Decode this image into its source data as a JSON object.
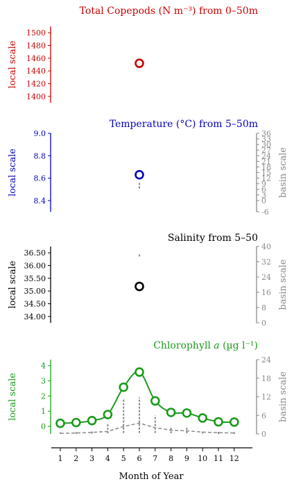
{
  "colors": {
    "copepods": "#cc0000",
    "temperature": "#0000bb",
    "salinity": "#000000",
    "chlorophyll": "#1a9a1a",
    "basin": "#888888"
  },
  "labels": {
    "local_scale": "local scale",
    "basin_scale": "basin scale"
  },
  "chart_data": [
    {
      "type": "scatter",
      "title": "Total Copepods (N m⁻³) from 0–50m",
      "ylabel_left": "local scale",
      "ylim_left": [
        1390,
        1510
      ],
      "yticks_left": [
        "1400",
        "1420",
        "1440",
        "1460",
        "1480",
        "1500"
      ],
      "series": [
        {
          "axis": "left",
          "x": [
            6
          ],
          "y": [
            1452
          ]
        }
      ]
    },
    {
      "type": "scatter",
      "title": "Temperature (°C) from 5–50m",
      "ylabel_left": "local scale",
      "ylabel_right": "basin scale",
      "ylim_left": [
        8.3,
        9.0
      ],
      "ylim_right": [
        -6,
        36
      ],
      "yticks_left": [
        "8.4",
        "8.6",
        "8.8",
        "9.0"
      ],
      "yticks_right": [
        "-6",
        "0",
        "3",
        "6",
        "9",
        "12",
        "15",
        "18",
        "21",
        "24",
        "27",
        "30",
        "33",
        "36"
      ],
      "series": [
        {
          "axis": "left",
          "x": [
            6
          ],
          "y": [
            8.63
          ]
        },
        {
          "axis": "right",
          "kind": "range",
          "x": [
            6
          ],
          "low": [
            6.5
          ],
          "high": [
            9.5
          ]
        }
      ]
    },
    {
      "type": "scatter",
      "title": "Salinity from 5–50",
      "ylabel_left": "local scale",
      "ylabel_right": "basin scale",
      "ylim_left": [
        33.75,
        36.75
      ],
      "ylim_right": [
        0,
        40
      ],
      "yticks_left": [
        "34.00",
        "34.50",
        "35.00",
        "35.50",
        "36.00",
        "36.50"
      ],
      "yticks_right": [
        "0",
        "8",
        "16",
        "24",
        "32",
        "40"
      ],
      "series": [
        {
          "axis": "left",
          "x": [
            6
          ],
          "y": [
            35.18
          ]
        },
        {
          "axis": "right",
          "kind": "range",
          "x": [
            6
          ],
          "low": [
            34.8
          ],
          "high": [
            35.8
          ]
        }
      ]
    },
    {
      "type": "line",
      "title": "Chlorophyll a (µg l⁻¹)",
      "xlabel": "Month of Year",
      "ylabel_left": "local scale",
      "ylabel_right": "basin scale",
      "ylim_left": [
        -0.5,
        4.4
      ],
      "ylim_right": [
        0,
        24
      ],
      "yticks_left": [
        "0",
        "1",
        "2",
        "3",
        "4"
      ],
      "yticks_right": [
        "0",
        "6",
        "12",
        "18",
        "24"
      ],
      "categories": [
        "1",
        "2",
        "3",
        "4",
        "5",
        "6",
        "7",
        "8",
        "9",
        "10",
        "11",
        "12"
      ],
      "series": [
        {
          "axis": "left",
          "x": [
            1,
            2,
            3,
            4,
            5,
            6,
            7,
            8,
            9,
            10,
            11,
            12
          ],
          "y": [
            0.2,
            0.25,
            0.38,
            0.78,
            2.58,
            3.58,
            1.68,
            0.92,
            0.88,
            0.55,
            0.3,
            0.28
          ]
        },
        {
          "axis": "right",
          "kind": "dashed-mean",
          "x": [
            1,
            2,
            3,
            4,
            5,
            6,
            7,
            8,
            9,
            10,
            11,
            12
          ],
          "y": [
            0.2,
            0.3,
            0.5,
            0.8,
            2.4,
            3.5,
            2.0,
            1.2,
            1.0,
            0.6,
            0.4,
            0.3
          ]
        },
        {
          "axis": "right",
          "kind": "range",
          "x": [
            1,
            2,
            3,
            4,
            5,
            6,
            7,
            8,
            9,
            10,
            11,
            12
          ],
          "low": [
            0.0,
            0.0,
            0.1,
            0.2,
            0.3,
            0.3,
            0.3,
            0.2,
            0.2,
            0.1,
            0.0,
            0.0
          ],
          "high": [
            0.5,
            0.6,
            1.2,
            3.6,
            11.5,
            11.8,
            6.0,
            2.5,
            2.4,
            1.2,
            0.7,
            0.6
          ]
        }
      ]
    }
  ]
}
